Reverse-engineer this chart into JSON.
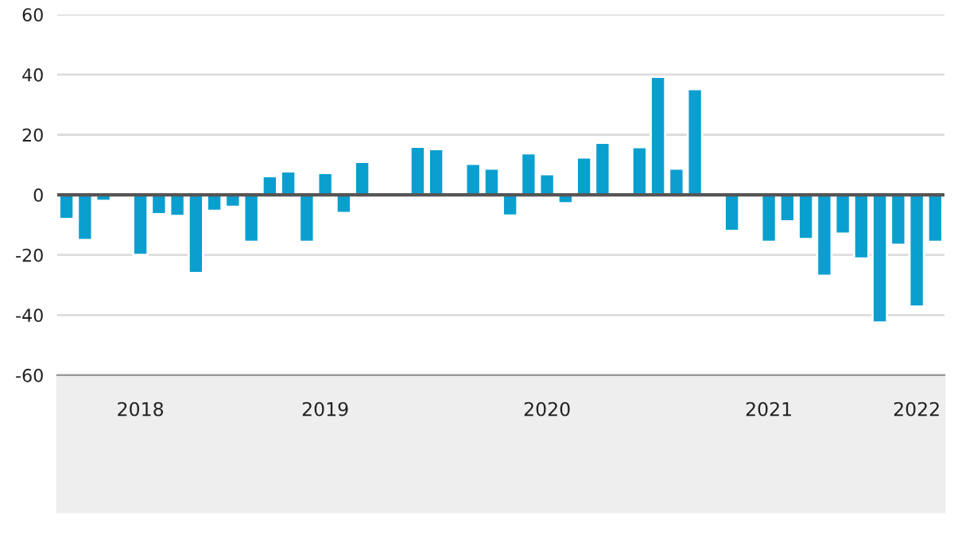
{
  "chart_data": {
    "type": "bar",
    "categories": [
      null,
      null,
      null,
      null,
      "2018",
      null,
      null,
      null,
      null,
      null,
      null,
      null,
      null,
      null,
      "2019",
      null,
      null,
      null,
      null,
      null,
      null,
      null,
      null,
      null,
      null,
      null,
      "2020",
      null,
      null,
      null,
      null,
      null,
      null,
      null,
      null,
      null,
      null,
      null,
      "2021",
      null,
      null,
      null,
      null,
      null,
      null,
      null,
      "2022",
      null
    ],
    "series": [
      {
        "color": "#0a9fcf",
        "values": [
          -8,
          -15,
          -2,
          null,
          -20,
          -6.4,
          -7,
          -26,
          -5.3,
          -4,
          -15.6,
          6.2,
          7.8,
          -15.6,
          7.3,
          -6,
          11,
          null,
          null,
          16,
          15.2,
          -0.4,
          10.3,
          8.7,
          -6.9,
          13.8,
          6.9,
          -2.8,
          12.4,
          17.3,
          null,
          15.9,
          39.3,
          8.7,
          35.2,
          null,
          -12,
          null,
          -15.6,
          -8.8,
          -14.7,
          -26.9,
          -12.9,
          -21.2,
          -42.5,
          -16.6,
          -37.2,
          -15.6
        ]
      }
    ],
    "ylim": [
      -60,
      60
    ],
    "yticks": [
      -60,
      -40,
      -20,
      0,
      20,
      40,
      60
    ],
    "grid": "y",
    "ref_lines": [
      {
        "axis": "y",
        "value": 0,
        "color": "#555555"
      }
    ]
  }
}
